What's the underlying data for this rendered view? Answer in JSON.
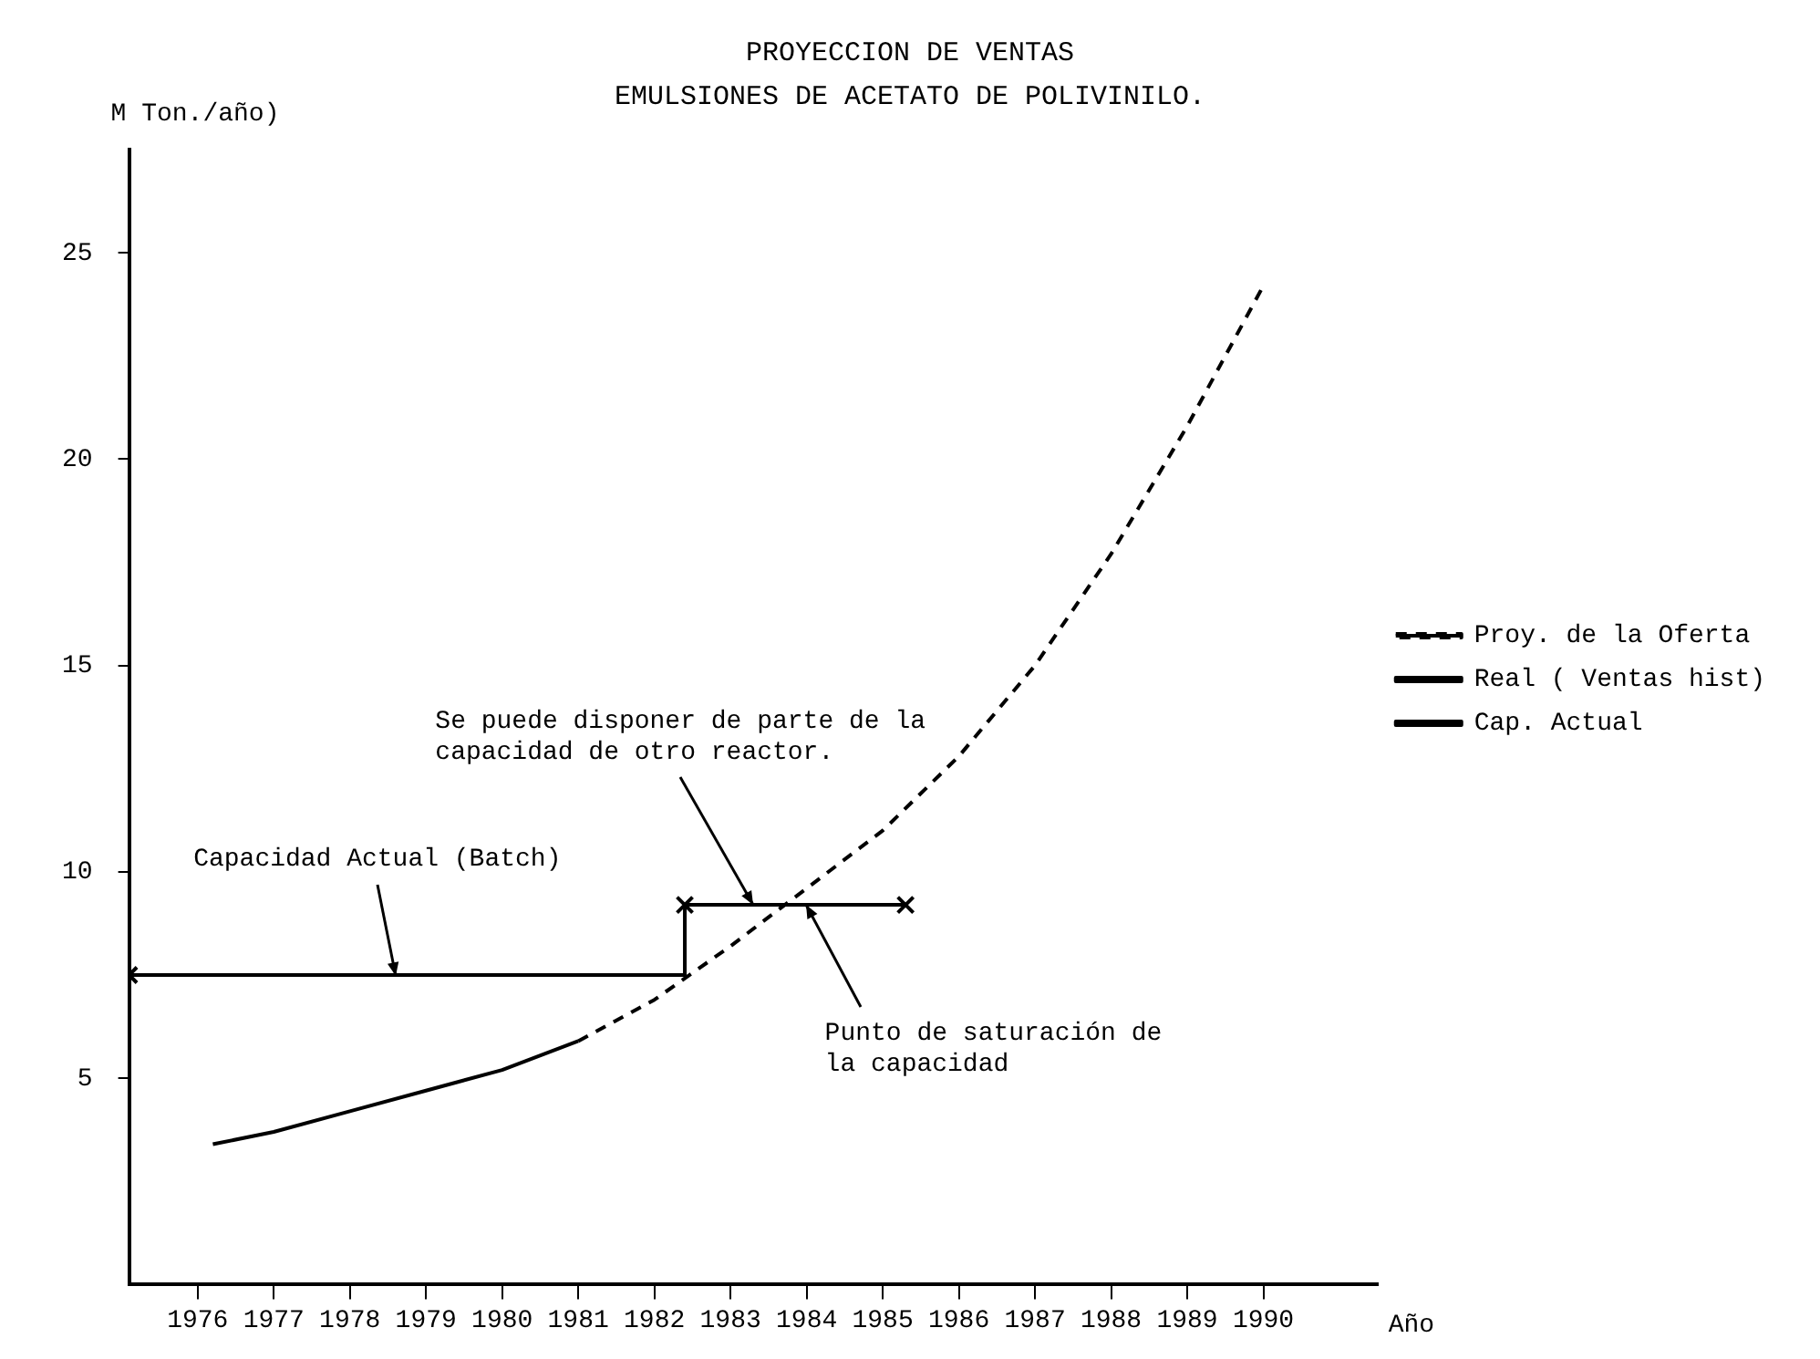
{
  "chart_data": {
    "type": "line",
    "title": "PROYECCION DE VENTAS",
    "subtitle": "EMULSIONES DE ACETATO DE POLIVINILO.",
    "ylabel": "M Ton./año)",
    "xlabel": "Año",
    "series": [
      {
        "name": "Proy. de la Oferta",
        "type": "line",
        "line_style": "dashed",
        "color": "#000000",
        "x": [
          1981,
          1982,
          1983,
          1984,
          1985,
          1986,
          1987,
          1988,
          1989,
          1990
        ],
        "values": [
          5.9,
          6.9,
          8.2,
          9.6,
          11.0,
          12.8,
          15.0,
          17.7,
          20.8,
          24.2
        ]
      },
      {
        "name": "Real ( Ventas hist)",
        "type": "line",
        "line_style": "solid",
        "color": "#000000",
        "x": [
          1976.2,
          1977,
          1978,
          1979,
          1980,
          1981
        ],
        "values": [
          3.4,
          3.7,
          4.2,
          4.7,
          5.2,
          5.9
        ]
      },
      {
        "name": "Cap. Actual",
        "type": "step",
        "line_style": "solid",
        "marker": "cross",
        "color": "#000000",
        "x": [
          1975.1,
          1982.4,
          1985.3
        ],
        "values": [
          7.5,
          9.2,
          9.2
        ]
      }
    ],
    "xlim": [
      1975.1,
      1991.5
    ],
    "xticks": [
      1976,
      1977,
      1978,
      1979,
      1980,
      1981,
      1982,
      1983,
      1984,
      1985,
      1986,
      1987,
      1988,
      1989,
      1990
    ],
    "ylim": [
      0,
      27.5
    ],
    "yticks": [
      5,
      10,
      15,
      20,
      25
    ],
    "grid": false,
    "legend": "right",
    "annotations": [
      {
        "text": "Capacidad Actual (Batch)",
        "x": 1978.6,
        "y": 7.5
      },
      {
        "text": "Se puede disponer de parte de la capacidad de otro reactor.",
        "x": 1983.3,
        "y": 9.2
      },
      {
        "text": "Punto de saturación de la capacidad",
        "x": 1984,
        "y": 9.2
      }
    ]
  }
}
